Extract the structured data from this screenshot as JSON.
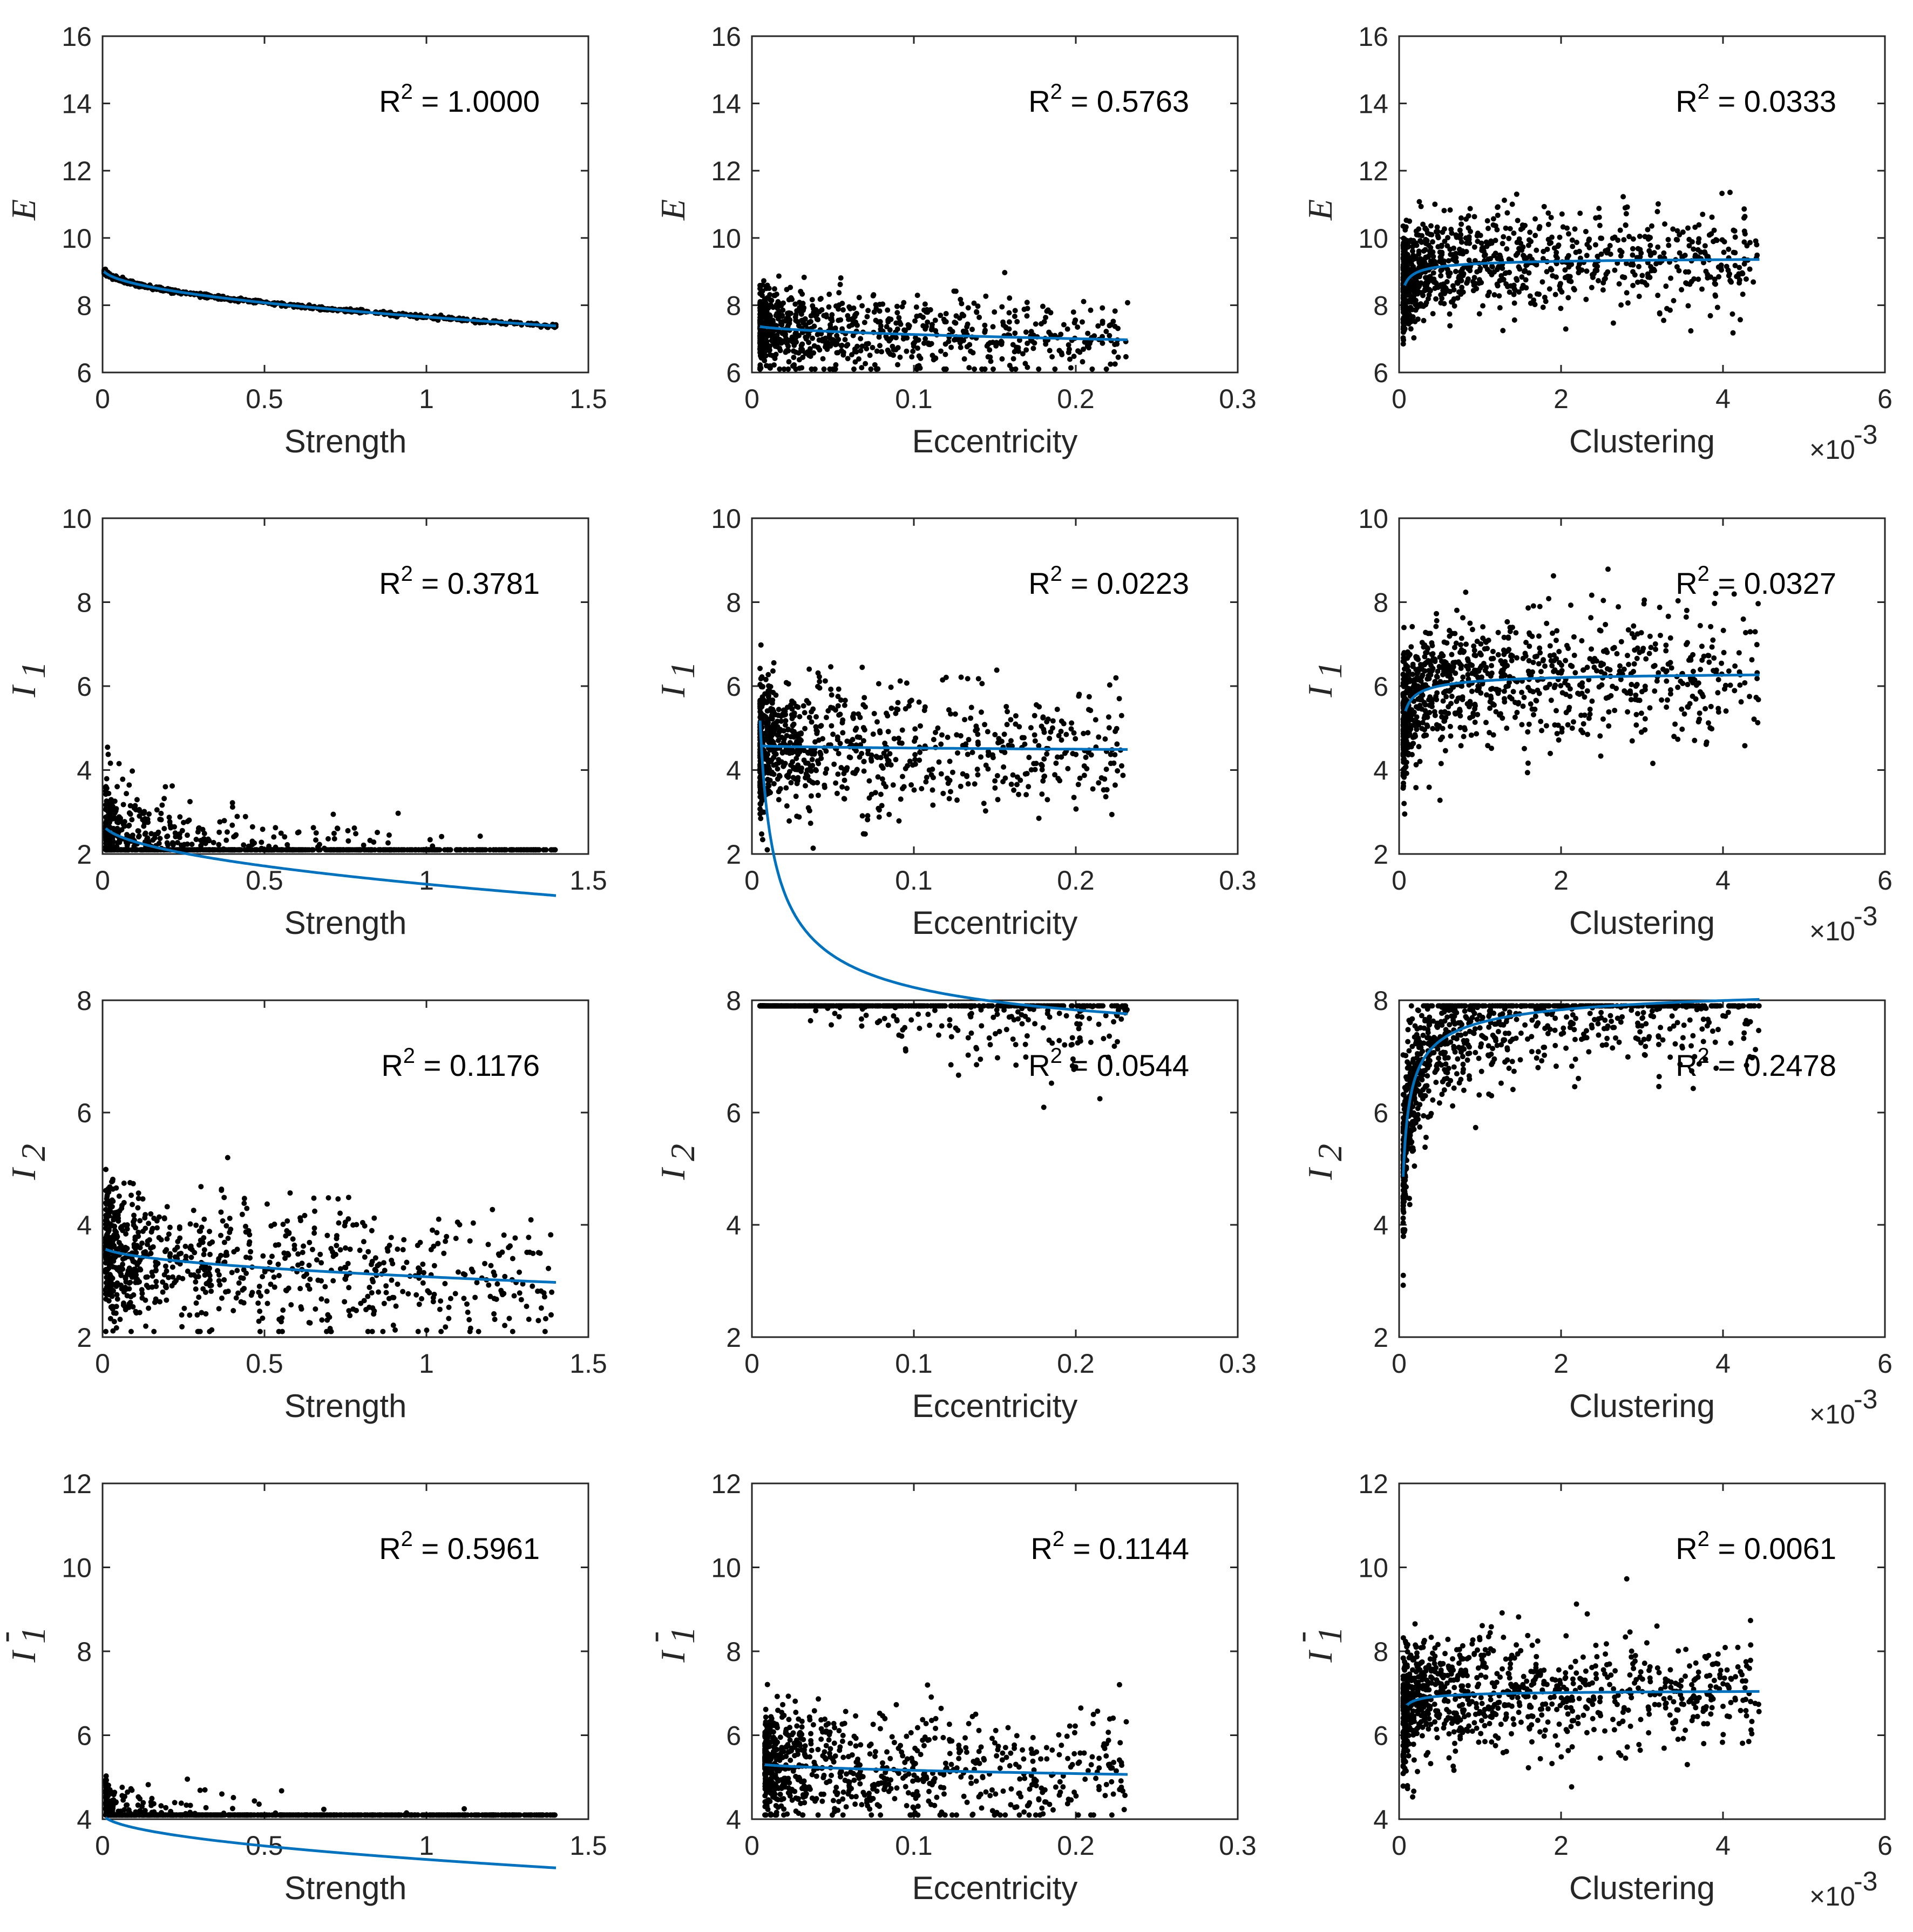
{
  "chart_data": [
    {
      "type": "scatter",
      "xlabel": "Strength",
      "ylabel": "E",
      "ylabel_sub": "",
      "ylabel_sup": "",
      "xlim": [
        0,
        1.5
      ],
      "xticks": [
        "0",
        "0.5",
        "1",
        "1.5"
      ],
      "ylim": [
        6,
        16
      ],
      "yticks": [
        "6",
        "8",
        "10",
        "12",
        "14",
        "16"
      ],
      "x_multiplier": "",
      "r2": "1.0000",
      "fit": {
        "a": 9.1,
        "b": -1.45,
        "c": 0.5,
        "x0": 0.005,
        "x1": 1.4
      },
      "scatter": {
        "n": 700,
        "xmin": 0.005,
        "xmax": 1.4,
        "xshape": 2.2,
        "noise": 0.03,
        "seed": 11
      },
      "colors": {
        "fit": "#0072BD",
        "points": "#000000"
      }
    },
    {
      "type": "scatter",
      "xlabel": "Eccentricity",
      "ylabel": "E",
      "ylabel_sub": "",
      "ylabel_sup": "",
      "xlim": [
        0,
        0.3
      ],
      "xticks": [
        "0",
        "0.1",
        "0.2",
        "0.3"
      ],
      "ylim": [
        6,
        16
      ],
      "yticks": [
        "6",
        "8",
        "10",
        "12",
        "14",
        "16"
      ],
      "x_multiplier": "",
      "r2": "0.5763",
      "fit": {
        "a": 7.43,
        "b": -0.952,
        "c": 0.5,
        "x0": 0.005,
        "x1": 0.232
      },
      "scatter": {
        "n": 850,
        "xmin": 0.005,
        "xmax": 0.232,
        "xshape": 2.5,
        "noise": 0.6,
        "seed": 12
      },
      "colors": {
        "fit": "#0072BD",
        "points": "#000000"
      }
    },
    {
      "type": "scatter",
      "xlabel": "Clustering",
      "ylabel": "E",
      "ylabel_sub": "",
      "ylabel_sup": "",
      "xlim": [
        0,
        6
      ],
      "xticks": [
        "0",
        "2",
        "4",
        "6"
      ],
      "ylim": [
        6,
        16
      ],
      "yticks": [
        "6",
        "8",
        "10",
        "12",
        "14",
        "16"
      ],
      "x_multiplier": "×10",
      "x_multiplier_exp": "-3",
      "r2": "0.0333",
      "fit": {
        "a": 9.47,
        "b": -0.232,
        "c": -0.5,
        "x0": 0.07,
        "x1": 4.45
      },
      "scatter": {
        "n": 1000,
        "xmin": 0.05,
        "xmax": 4.45,
        "xshape": 2.4,
        "noise": 0.75,
        "seed": 13
      },
      "colors": {
        "fit": "#0072BD",
        "points": "#000000"
      }
    },
    {
      "type": "scatter",
      "xlabel": "Strength",
      "ylabel": "I",
      "ylabel_sub": "1",
      "ylabel_sup": "",
      "xlim": [
        0,
        1.5
      ],
      "xticks": [
        "0",
        "0.5",
        "1",
        "1.5"
      ],
      "ylim": [
        2,
        10
      ],
      "yticks": [
        "2",
        "4",
        "6",
        "8",
        "10"
      ],
      "x_multiplier": "",
      "r2": "0.3781",
      "fit": {
        "a": 2.76,
        "b": -1.48,
        "c": 0.5,
        "x0": 0.01,
        "x1": 1.4
      },
      "scatter": {
        "n": 850,
        "xmin": 0.01,
        "xmax": 1.4,
        "xshape": 2.3,
        "noise": 0.6,
        "seed": 21
      },
      "colors": {
        "fit": "#0072BD",
        "points": "#000000"
      }
    },
    {
      "type": "scatter",
      "xlabel": "Eccentricity",
      "ylabel": "I",
      "ylabel_sub": "1",
      "ylabel_sup": "",
      "xlim": [
        0,
        0.3
      ],
      "xticks": [
        "0",
        "0.1",
        "0.2",
        "0.3"
      ],
      "ylim": [
        2,
        10
      ],
      "yticks": [
        "2",
        "4",
        "6",
        "8",
        "10"
      ],
      "x_multiplier": "",
      "r2": "0.0223",
      "fit": {
        "a": 4.59,
        "b": -0.208,
        "c": 0.5,
        "x0": 0.005,
        "x1": 0.232
      },
      "scatter": {
        "n": 850,
        "xmin": 0.005,
        "xmax": 0.232,
        "xshape": 2.5,
        "noise": 0.75,
        "seed": 22
      },
      "colors": {
        "fit": "#0072BD",
        "points": "#000000"
      }
    },
    {
      "type": "scatter",
      "xlabel": "Clustering",
      "ylabel": "I",
      "ylabel_sub": "1",
      "ylabel_sup": "",
      "xlim": [
        0,
        6
      ],
      "xticks": [
        "0",
        "2",
        "4",
        "6"
      ],
      "ylim": [
        2,
        10
      ],
      "yticks": [
        "2",
        "4",
        "6",
        "8",
        "10"
      ],
      "x_multiplier": "×10",
      "x_multiplier_exp": "-3",
      "r2": "0.0327",
      "fit": {
        "a": 6.4,
        "b": -0.28,
        "c": -0.5,
        "x0": 0.08,
        "x1": 4.45
      },
      "scatter": {
        "n": 1000,
        "xmin": 0.05,
        "xmax": 4.45,
        "xshape": 2.4,
        "noise": 0.75,
        "seed": 23
      },
      "colors": {
        "fit": "#0072BD",
        "points": "#000000"
      }
    },
    {
      "type": "scatter",
      "xlabel": "Strength",
      "ylabel": "I",
      "ylabel_sub": "2",
      "ylabel_sup": "",
      "xlim": [
        0,
        1.5
      ],
      "xticks": [
        "0",
        "0.5",
        "1",
        "1.5"
      ],
      "ylim": [
        2,
        8
      ],
      "yticks": [
        "2",
        "4",
        "6",
        "8"
      ],
      "x_multiplier": "",
      "r2": "0.1176",
      "fit": {
        "a": 3.62,
        "b": -0.545,
        "c": 0.5,
        "x0": 0.01,
        "x1": 1.4
      },
      "scatter": {
        "n": 850,
        "xmin": 0.01,
        "xmax": 1.4,
        "xshape": 2.3,
        "noise": 0.6,
        "seed": 31
      },
      "colors": {
        "fit": "#0072BD",
        "points": "#000000"
      }
    },
    {
      "type": "scatter",
      "xlabel": "Eccentricity",
      "ylabel": "I",
      "ylabel_sub": "2",
      "ylabel_sup": "",
      "xlim": [
        0,
        0.3
      ],
      "xticks": [
        "0",
        "0.1",
        "0.2",
        "0.3"
      ],
      "ylim": [
        2,
        8
      ],
      "yticks": [
        "2",
        "4",
        "6",
        "8"
      ],
      "x_multiplier": "",
      "r2": "0.0544",
      "fit": {
        "a": 6.86,
        "b": 0.433,
        "c": -0.5,
        "x0": 0.005,
        "x1": 0.232
      },
      "scatter": {
        "n": 850,
        "xmin": 0.005,
        "xmax": 0.232,
        "xshape": 2.5,
        "noise": 0.6,
        "seed": 32
      },
      "colors": {
        "fit": "#0072BD",
        "points": "#000000"
      }
    },
    {
      "type": "scatter",
      "xlabel": "Clustering",
      "ylabel": "I",
      "ylabel_sub": "2",
      "ylabel_sup": "",
      "xlim": [
        0,
        6
      ],
      "xticks": [
        "0",
        "2",
        "4",
        "6"
      ],
      "ylim": [
        2,
        8
      ],
      "yticks": [
        "2",
        "4",
        "6",
        "8"
      ],
      "x_multiplier": "×10",
      "x_multiplier_exp": "-3",
      "r2": "0.2478",
      "fit": {
        "a": 8.39,
        "b": -0.79,
        "c": -0.5,
        "x0": 0.05,
        "x1": 4.45
      },
      "scatter": {
        "n": 1000,
        "xmin": 0.05,
        "xmax": 4.45,
        "xshape": 2.4,
        "noise": 0.6,
        "seed": 33
      },
      "colors": {
        "fit": "#0072BD",
        "points": "#000000"
      }
    },
    {
      "type": "scatter",
      "xlabel": "Strength",
      "ylabel": "I",
      "ylabel_sub": "1",
      "ylabel_sup": "-",
      "xlim": [
        0,
        1.5
      ],
      "xticks": [
        "0",
        "0.5",
        "1",
        "1.5"
      ],
      "ylim": [
        4,
        12
      ],
      "yticks": [
        "4",
        "6",
        "8",
        "10",
        "12"
      ],
      "x_multiplier": "",
      "r2": "0.5961",
      "fit": {
        "a": 4.14,
        "b": -1.1,
        "c": 0.5,
        "x0": 0.01,
        "x1": 1.4
      },
      "scatter": {
        "n": 850,
        "xmin": 0.01,
        "xmax": 1.4,
        "xshape": 2.3,
        "noise": 0.45,
        "seed": 41
      },
      "colors": {
        "fit": "#0072BD",
        "points": "#000000"
      }
    },
    {
      "type": "scatter",
      "xlabel": "Eccentricity",
      "ylabel": "I",
      "ylabel_sub": "1",
      "ylabel_sup": "-",
      "xlim": [
        0,
        0.3
      ],
      "xticks": [
        "0",
        "0.1",
        "0.2",
        "0.3"
      ],
      "ylim": [
        4,
        12
      ],
      "yticks": [
        "4",
        "6",
        "8",
        "10",
        "12"
      ],
      "x_multiplier": "",
      "r2": "0.1144",
      "fit": {
        "a": 5.35,
        "b": -0.59,
        "c": 0.5,
        "x0": 0.008,
        "x1": 0.232
      },
      "scatter": {
        "n": 850,
        "xmin": 0.008,
        "xmax": 0.232,
        "xshape": 2.5,
        "noise": 0.7,
        "seed": 42
      },
      "colors": {
        "fit": "#0072BD",
        "points": "#000000"
      }
    },
    {
      "type": "scatter",
      "xlabel": "Clustering",
      "ylabel": "I",
      "ylabel_sub": "1",
      "ylabel_sup": "-",
      "xlim": [
        0,
        6
      ],
      "xticks": [
        "0",
        "2",
        "4",
        "6"
      ],
      "ylim": [
        4,
        12
      ],
      "yticks": [
        "4",
        "6",
        "8",
        "10",
        "12"
      ],
      "x_multiplier": "×10",
      "x_multiplier_exp": "-3",
      "r2": "0.0061",
      "fit": {
        "a": 7.1,
        "b": -0.12,
        "c": -0.5,
        "x0": 0.1,
        "x1": 4.45
      },
      "scatter": {
        "n": 1000,
        "xmin": 0.05,
        "xmax": 4.45,
        "xshape": 2.4,
        "noise": 0.7,
        "seed": 43
      },
      "colors": {
        "fit": "#0072BD",
        "points": "#000000"
      }
    }
  ]
}
